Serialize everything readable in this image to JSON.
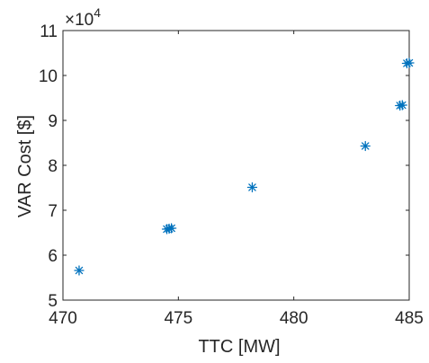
{
  "chart_data": {
    "type": "scatter",
    "xlabel": "TTC [MW]",
    "ylabel": "VAR Cost [$]",
    "xlim": [
      470,
      485
    ],
    "ylim": [
      50000,
      110000
    ],
    "x_ticks": [
      470,
      475,
      480,
      485
    ],
    "y_ticks": [
      50000,
      60000,
      70000,
      80000,
      90000,
      100000,
      110000
    ],
    "y_tick_labels": [
      "5",
      "6",
      "7",
      "8",
      "9",
      "10",
      "11"
    ],
    "y_exponent_base": "×10",
    "y_exponent_power": "4",
    "marker": "*",
    "marker_color": "#0072BD",
    "grid": false,
    "points": [
      {
        "x": 470.7,
        "y": 56600
      },
      {
        "x": 474.5,
        "y": 65800
      },
      {
        "x": 474.6,
        "y": 65900
      },
      {
        "x": 474.7,
        "y": 66000
      },
      {
        "x": 478.2,
        "y": 75100
      },
      {
        "x": 483.1,
        "y": 84300
      },
      {
        "x": 484.6,
        "y": 93300
      },
      {
        "x": 484.7,
        "y": 93400
      },
      {
        "x": 484.9,
        "y": 102700
      },
      {
        "x": 485.0,
        "y": 102800
      }
    ]
  }
}
